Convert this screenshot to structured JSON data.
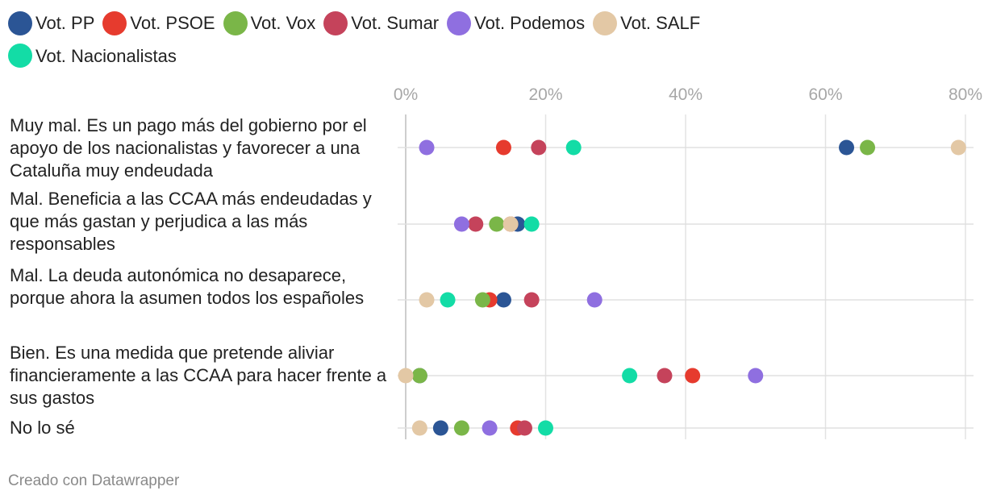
{
  "footer": "Creado con Datawrapper",
  "chart_data": {
    "type": "scatter",
    "xlim": [
      0,
      80
    ],
    "x_ticks": [
      "0%",
      "20%",
      "40%",
      "60%",
      "80%"
    ],
    "grid": true,
    "legend_position": "top-left",
    "categories": [
      "Muy mal. Es un pago más del gobierno por el apoyo de los nacionalistas y favorecer a una Cataluña muy endeudada",
      "Mal. Beneficia a las CCAA más endeudadas y que más gastan y perjudica a las más responsables",
      "Mal. La deuda autonómica no desaparece, porque ahora la asumen todos los españoles",
      "Bien. Es una medida que pretende aliviar financieramente a las CCAA para hacer frente a sus gastos",
      "No lo sé"
    ],
    "series": [
      {
        "name": "Vot. PP",
        "color": "#2b5595",
        "values": [
          63,
          16,
          14,
          2,
          5
        ]
      },
      {
        "name": "Vot. PSOE",
        "color": "#e63b2e",
        "values": [
          14,
          15,
          12,
          41,
          16
        ]
      },
      {
        "name": "Vot. Vox",
        "color": "#7ab648",
        "values": [
          66,
          13,
          11,
          2,
          8
        ]
      },
      {
        "name": "Vot. Sumar",
        "color": "#c5435b",
        "values": [
          19,
          10,
          18,
          37,
          17
        ]
      },
      {
        "name": "Vot. Podemos",
        "color": "#8f6fe0",
        "values": [
          3,
          8,
          27,
          50,
          12
        ]
      },
      {
        "name": "Vot. SALF",
        "color": "#e3c8a5",
        "values": [
          79,
          15,
          3,
          0,
          2
        ]
      },
      {
        "name": "Vot. Nacionalistas",
        "color": "#13dca6",
        "values": [
          24,
          18,
          6,
          32,
          20
        ]
      }
    ]
  }
}
